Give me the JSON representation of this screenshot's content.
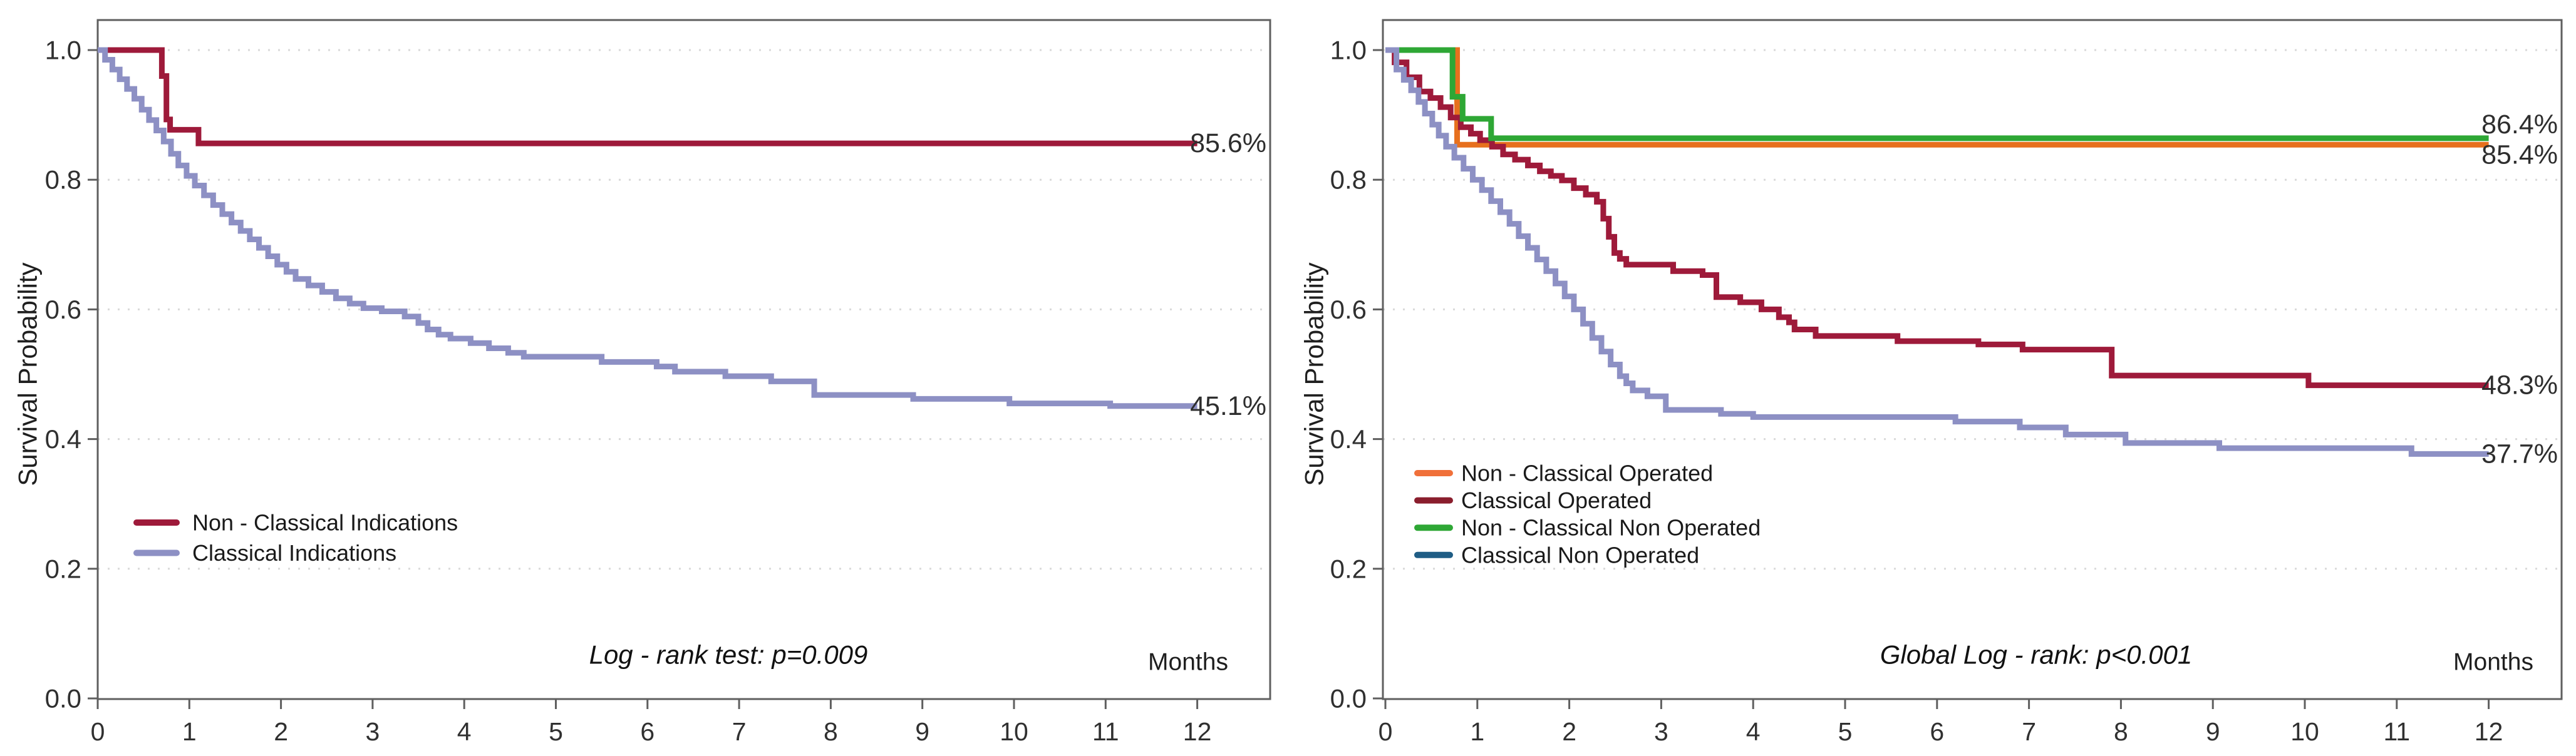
{
  "figure": {
    "background": "#ffffff"
  },
  "chart_data": [
    {
      "type": "line",
      "subtype": "kaplan-meier-step",
      "panel": "left",
      "ylabel": "Survival Probability",
      "x_unit_label": "Months",
      "annotation": "Log - rank test: p=0.009",
      "xlim": [
        0,
        12.8
      ],
      "ylim": [
        0.0,
        1.05
      ],
      "grid": "dotted-horizontal",
      "legend_position": "inside-lower-left",
      "xtick_labels": [
        "0",
        "1",
        "2",
        "3",
        "4",
        "5",
        "6",
        "7",
        "8",
        "9",
        "10",
        "11",
        "12"
      ],
      "xtick_values": [
        0,
        1,
        2,
        3,
        4,
        5,
        6,
        7,
        8,
        9,
        10,
        11,
        12
      ],
      "ytick_labels": [
        "1.0",
        "0.8",
        "0.6",
        "0.4",
        "0.2",
        "0.0"
      ],
      "ytick_values": [
        1.0,
        0.8,
        0.6,
        0.4,
        0.2,
        0.0
      ],
      "series": [
        {
          "name": "Non - Classical Indications",
          "color": "#9E1A3A",
          "legend_color": "#9E1A3A",
          "end_label": "85.6%",
          "end_label_color": "#9E1A3A",
          "end_label_offset": 0,
          "final_value": 0.856,
          "points": [
            [
              0,
              1.0
            ],
            [
              0.7,
              0.96
            ],
            [
              0.75,
              0.893
            ],
            [
              0.79,
              0.877
            ],
            [
              1.1,
              0.856
            ]
          ]
        },
        {
          "name": "Classical Indications",
          "color": "#8D90C4",
          "legend_color": "#8D90C4",
          "end_label": "45.1%",
          "end_label_color": "#2B3F92",
          "end_label_offset": 0,
          "final_value": 0.451,
          "points": [
            [
              0,
              1.0
            ],
            [
              0.08,
              0.985
            ],
            [
              0.16,
              0.97
            ],
            [
              0.24,
              0.955
            ],
            [
              0.32,
              0.94
            ],
            [
              0.4,
              0.925
            ],
            [
              0.48,
              0.908
            ],
            [
              0.56,
              0.892
            ],
            [
              0.64,
              0.876
            ],
            [
              0.72,
              0.859
            ],
            [
              0.8,
              0.84
            ],
            [
              0.88,
              0.822
            ],
            [
              0.97,
              0.806
            ],
            [
              1.06,
              0.791
            ],
            [
              1.16,
              0.776
            ],
            [
              1.26,
              0.761
            ],
            [
              1.36,
              0.747
            ],
            [
              1.46,
              0.734
            ],
            [
              1.56,
              0.721
            ],
            [
              1.66,
              0.708
            ],
            [
              1.76,
              0.695
            ],
            [
              1.86,
              0.682
            ],
            [
              1.96,
              0.669
            ],
            [
              2.06,
              0.658
            ],
            [
              2.16,
              0.647
            ],
            [
              2.3,
              0.637
            ],
            [
              2.45,
              0.627
            ],
            [
              2.6,
              0.617
            ],
            [
              2.75,
              0.609
            ],
            [
              2.9,
              0.602
            ],
            [
              3.1,
              0.597
            ],
            [
              3.35,
              0.589
            ],
            [
              3.5,
              0.579
            ],
            [
              3.6,
              0.569
            ],
            [
              3.72,
              0.561
            ],
            [
              3.85,
              0.555
            ],
            [
              4.07,
              0.548
            ],
            [
              4.27,
              0.54
            ],
            [
              4.48,
              0.533
            ],
            [
              4.65,
              0.527
            ],
            [
              5.5,
              0.519
            ],
            [
              6.1,
              0.512
            ],
            [
              6.3,
              0.504
            ],
            [
              6.85,
              0.497
            ],
            [
              7.35,
              0.489
            ],
            [
              7.82,
              0.468
            ],
            [
              8.9,
              0.462
            ],
            [
              9.95,
              0.455
            ],
            [
              11.05,
              0.451
            ]
          ]
        }
      ]
    },
    {
      "type": "line",
      "subtype": "kaplan-meier-step",
      "panel": "right",
      "ylabel": "Survival Probability",
      "x_unit_label": "Months",
      "annotation": "Global Log - rank: p<0.001",
      "xlim": [
        0,
        12.8
      ],
      "ylim": [
        0.0,
        1.05
      ],
      "grid": "dotted-horizontal",
      "legend_position": "inside-lower-left",
      "xtick_labels": [
        "0",
        "1",
        "2",
        "3",
        "4",
        "5",
        "6",
        "7",
        "8",
        "9",
        "10",
        "11",
        "12"
      ],
      "xtick_values": [
        0,
        1,
        2,
        3,
        4,
        5,
        6,
        7,
        8,
        9,
        10,
        11,
        12
      ],
      "ytick_labels": [
        "1.0",
        "0.8",
        "0.6",
        "0.4",
        "0.2",
        "0.0"
      ],
      "ytick_values": [
        1.0,
        0.8,
        0.6,
        0.4,
        0.2,
        0.0
      ],
      "series": [
        {
          "name": "Non - Classical Operated",
          "color": "#E7701E",
          "legend_color": "#F0703A",
          "end_label": "85.4%",
          "end_label_color": "#E87425",
          "end_label_offset": 16,
          "final_value": 0.854,
          "legend_index": 0,
          "points": [
            [
              0,
              1.0
            ],
            [
              0.78,
              0.854
            ]
          ]
        },
        {
          "name": "Classical Operated",
          "color": "#9E1A3A",
          "legend_color": "#8A1E2D",
          "end_label": "48.3%",
          "end_label_color": "#9E1A3A",
          "end_label_offset": 0,
          "final_value": 0.483,
          "legend_index": 1,
          "points": [
            [
              0,
              1.0
            ],
            [
              0.1,
              0.981
            ],
            [
              0.23,
              0.958
            ],
            [
              0.37,
              0.936
            ],
            [
              0.49,
              0.926
            ],
            [
              0.6,
              0.912
            ],
            [
              0.71,
              0.896
            ],
            [
              0.82,
              0.881
            ],
            [
              0.93,
              0.871
            ],
            [
              1.03,
              0.861
            ],
            [
              1.16,
              0.851
            ],
            [
              1.28,
              0.839
            ],
            [
              1.41,
              0.831
            ],
            [
              1.55,
              0.822
            ],
            [
              1.68,
              0.813
            ],
            [
              1.8,
              0.806
            ],
            [
              1.92,
              0.799
            ],
            [
              2.05,
              0.787
            ],
            [
              2.18,
              0.777
            ],
            [
              2.3,
              0.766
            ],
            [
              2.37,
              0.74
            ],
            [
              2.43,
              0.712
            ],
            [
              2.49,
              0.687
            ],
            [
              2.55,
              0.678
            ],
            [
              2.62,
              0.669
            ],
            [
              3.13,
              0.659
            ],
            [
              3.45,
              0.653
            ],
            [
              3.6,
              0.619
            ],
            [
              3.86,
              0.611
            ],
            [
              4.09,
              0.6
            ],
            [
              4.28,
              0.588
            ],
            [
              4.39,
              0.58
            ],
            [
              4.45,
              0.569
            ],
            [
              4.68,
              0.559
            ],
            [
              5.57,
              0.551
            ],
            [
              6.45,
              0.546
            ],
            [
              6.93,
              0.538
            ],
            [
              7.9,
              0.498
            ],
            [
              10.04,
              0.483
            ]
          ]
        },
        {
          "name": "Non - Classical Non Operated",
          "color": "#2EA735",
          "legend_color": "#2EA735",
          "end_label": "86.4%",
          "end_label_color": "#3A8E3C",
          "end_label_offset": -22,
          "final_value": 0.864,
          "legend_index": 2,
          "points": [
            [
              0,
              1.0
            ],
            [
              0.73,
              0.928
            ],
            [
              0.84,
              0.894
            ],
            [
              1.15,
              0.864
            ]
          ]
        },
        {
          "name": "Classical Non Operated",
          "color": "#8D90C4",
          "legend_color": "#1F5D85",
          "end_label": "37.7%",
          "end_label_color": "#2B3F92",
          "end_label_offset": 0,
          "final_value": 0.377,
          "legend_index": 3,
          "points": [
            [
              0,
              1.0
            ],
            [
              0.12,
              0.97
            ],
            [
              0.2,
              0.954
            ],
            [
              0.28,
              0.938
            ],
            [
              0.36,
              0.92
            ],
            [
              0.43,
              0.902
            ],
            [
              0.51,
              0.885
            ],
            [
              0.58,
              0.868
            ],
            [
              0.66,
              0.851
            ],
            [
              0.75,
              0.834
            ],
            [
              0.85,
              0.817
            ],
            [
              0.95,
              0.8
            ],
            [
              1.05,
              0.784
            ],
            [
              1.15,
              0.767
            ],
            [
              1.25,
              0.75
            ],
            [
              1.35,
              0.732
            ],
            [
              1.45,
              0.713
            ],
            [
              1.55,
              0.695
            ],
            [
              1.65,
              0.677
            ],
            [
              1.75,
              0.659
            ],
            [
              1.85,
              0.64
            ],
            [
              1.95,
              0.62
            ],
            [
              2.05,
              0.6
            ],
            [
              2.15,
              0.578
            ],
            [
              2.25,
              0.556
            ],
            [
              2.35,
              0.535
            ],
            [
              2.45,
              0.515
            ],
            [
              2.55,
              0.497
            ],
            [
              2.62,
              0.486
            ],
            [
              2.69,
              0.475
            ],
            [
              2.85,
              0.466
            ],
            [
              3.05,
              0.445
            ],
            [
              3.65,
              0.439
            ],
            [
              4.0,
              0.434
            ],
            [
              6.2,
              0.427
            ],
            [
              6.9,
              0.418
            ],
            [
              7.4,
              0.407
            ],
            [
              8.05,
              0.394
            ],
            [
              9.07,
              0.386
            ],
            [
              11.16,
              0.377
            ]
          ]
        }
      ]
    }
  ]
}
